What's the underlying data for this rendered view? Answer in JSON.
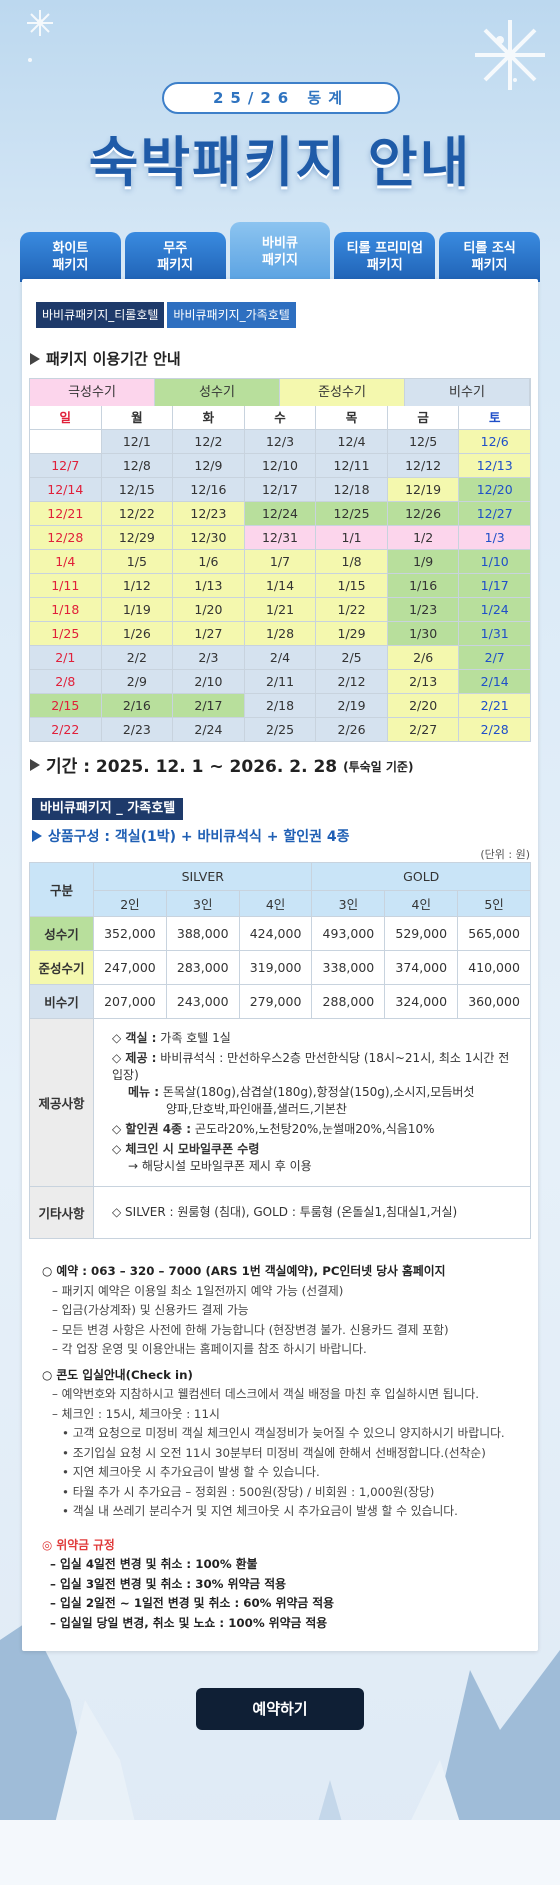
{
  "header": {
    "season": "25/26 동계",
    "title": "숙박패키지 안내"
  },
  "tabs": [
    {
      "lines": [
        "화이트",
        "패키지"
      ],
      "active": false
    },
    {
      "lines": [
        "무주",
        "패키지"
      ],
      "active": false
    },
    {
      "lines": [
        "바비큐",
        "패키지"
      ],
      "active": true
    },
    {
      "lines": [
        "티롤 프리미엄",
        "패키지"
      ],
      "active": false
    },
    {
      "lines": [
        "티롤 조식",
        "패키지"
      ],
      "active": false
    }
  ],
  "sub_tabs": [
    {
      "label": "바비큐패키지_티롤호텔",
      "active": false
    },
    {
      "label": "바비큐패키지_가족호텔",
      "active": true
    }
  ],
  "calendar": {
    "heading": "패키지 이용기간 안내",
    "seasons": [
      {
        "name": "극성수기",
        "color": "#fcd5ec"
      },
      {
        "name": "성수기",
        "color": "#b8df9c"
      },
      {
        "name": "준성수기",
        "color": "#f4f8ae"
      },
      {
        "name": "비수기",
        "color": "#d5e2ef"
      }
    ],
    "weekdays": [
      "일",
      "월",
      "화",
      "수",
      "목",
      "금",
      "토"
    ],
    "dates": [
      [
        null,
        "12/1",
        "12/2",
        "12/3",
        "12/4",
        "12/5",
        "12/6"
      ],
      [
        "12/7",
        "12/8",
        "12/9",
        "12/10",
        "12/11",
        "12/12",
        "12/13"
      ],
      [
        "12/14",
        "12/15",
        "12/16",
        "12/17",
        "12/18",
        "12/19",
        "12/20"
      ],
      [
        "12/21",
        "12/22",
        "12/23",
        "12/24",
        "12/25",
        "12/26",
        "12/27"
      ],
      [
        "12/28",
        "12/29",
        "12/30",
        "12/31",
        "1/1",
        "1/2",
        "1/3"
      ],
      [
        "1/4",
        "1/5",
        "1/6",
        "1/7",
        "1/8",
        "1/9",
        "1/10"
      ],
      [
        "1/11",
        "1/12",
        "1/13",
        "1/14",
        "1/15",
        "1/16",
        "1/17"
      ],
      [
        "1/18",
        "1/19",
        "1/20",
        "1/21",
        "1/22",
        "1/23",
        "1/24"
      ],
      [
        "1/25",
        "1/26",
        "1/27",
        "1/28",
        "1/29",
        "1/30",
        "1/31"
      ],
      [
        "2/1",
        "2/2",
        "2/3",
        "2/4",
        "2/5",
        "2/6",
        "2/7"
      ],
      [
        "2/8",
        "2/9",
        "2/10",
        "2/11",
        "2/12",
        "2/13",
        "2/14"
      ],
      [
        "2/15",
        "2/16",
        "2/17",
        "2/18",
        "2/19",
        "2/20",
        "2/21"
      ],
      [
        "2/22",
        "2/23",
        "2/24",
        "2/25",
        "2/26",
        "2/27",
        "2/28"
      ]
    ],
    "season_of": [
      [
        null,
        "비수기",
        "비수기",
        "비수기",
        "비수기",
        "비수기",
        "준성수기"
      ],
      [
        "비수기",
        "비수기",
        "비수기",
        "비수기",
        "비수기",
        "비수기",
        "준성수기"
      ],
      [
        "비수기",
        "비수기",
        "비수기",
        "비수기",
        "비수기",
        "준성수기",
        "성수기"
      ],
      [
        "준성수기",
        "준성수기",
        "준성수기",
        "성수기",
        "성수기",
        "성수기",
        "성수기"
      ],
      [
        "준성수기",
        "준성수기",
        "준성수기",
        "극성수기",
        "극성수기",
        "극성수기",
        "극성수기"
      ],
      [
        "준성수기",
        "준성수기",
        "준성수기",
        "준성수기",
        "준성수기",
        "성수기",
        "성수기"
      ],
      [
        "준성수기",
        "준성수기",
        "준성수기",
        "준성수기",
        "준성수기",
        "성수기",
        "성수기"
      ],
      [
        "준성수기",
        "준성수기",
        "준성수기",
        "준성수기",
        "준성수기",
        "성수기",
        "성수기"
      ],
      [
        "준성수기",
        "준성수기",
        "준성수기",
        "준성수기",
        "준성수기",
        "성수기",
        "성수기"
      ],
      [
        "비수기",
        "비수기",
        "비수기",
        "비수기",
        "비수기",
        "준성수기",
        "성수기"
      ],
      [
        "비수기",
        "비수기",
        "비수기",
        "비수기",
        "비수기",
        "준성수기",
        "성수기"
      ],
      [
        "성수기",
        "성수기",
        "성수기",
        "비수기",
        "비수기",
        "준성수기",
        "준성수기"
      ],
      [
        "비수기",
        "비수기",
        "비수기",
        "비수기",
        "비수기",
        "준성수기",
        "준성수기"
      ]
    ]
  },
  "period": {
    "text": "기간 : 2025. 12. 1 ~ 2026. 2. 28",
    "note": "(투숙일 기준)"
  },
  "package": {
    "label": "바비큐패키지 _ 가족호텔",
    "composition": "상품구성 : 객실(1박) + 바비큐석식 + 할인권 4종",
    "unit": "(단위 : 원)"
  },
  "price_table": {
    "corner": "구분",
    "groups": [
      "SILVER",
      "GOLD"
    ],
    "sub_headers": [
      "2인",
      "3인",
      "4인",
      "3인",
      "4인",
      "5인"
    ],
    "rows": [
      {
        "label": "성수기",
        "values": [
          "352,000",
          "388,000",
          "424,000",
          "493,000",
          "529,000",
          "565,000"
        ]
      },
      {
        "label": "준성수기",
        "values": [
          "247,000",
          "283,000",
          "319,000",
          "338,000",
          "374,000",
          "410,000"
        ]
      },
      {
        "label": "비수기",
        "values": [
          "207,000",
          "243,000",
          "279,000",
          "288,000",
          "324,000",
          "360,000"
        ]
      }
    ]
  },
  "provisions": {
    "label": "제공사항",
    "items": [
      {
        "head": "◇ 객실 :",
        "text": "가족 호텔 1실"
      },
      {
        "head": "◇ 제공 :",
        "text": "바비큐석식 : 만선하우스2층 만선한식당 (18시~21시, 최소 1시간 전 입장)",
        "sub": [
          {
            "head": "메뉴 :",
            "text": "돈목살(180g),삼겹살(180g),항정살(150g),소시지,모듬버섯",
            "more": "양파,단호박,파인애플,샐러드,기본찬"
          }
        ]
      },
      {
        "head": "◇ 할인권 4종 :",
        "text": "곤도라20%,노천탕20%,눈썰매20%,식음10%"
      },
      {
        "head": "◇ 체크인 시 모바일쿠폰 수령",
        "sub": [
          {
            "text": "→ 해당시설 모바일쿠폰 제시 후 이용"
          }
        ]
      }
    ]
  },
  "other": {
    "label": "기타사항",
    "text": "◇ SILVER : 원룸형 (침대), GOLD : 투룸형 (온돌실1,침대실1,거실)"
  },
  "notes": [
    {
      "title": "○ 예약 : 063 – 320 – 7000 (ARS 1번 객실예약), PC인터넷 당사 홈페이지",
      "items": [
        "– 패키지 예약은 이용일 최소 1일전까지 예약 가능 (선결제)",
        "– 입금(가상계좌) 및 신용카드 결제 가능",
        "– 모든 변경 사항은 사전에 한해 가능합니다 (현장변경 불가. 신용카드 결제 포함)",
        "– 각 업장 운영 및 이용안내는 홈페이지를 참조 하시기 바랍니다."
      ]
    },
    {
      "title": "○ 콘도 입실안내(Check in)",
      "items": [
        "– 예약번호와 지참하시고 웰컴센터 데스크에서 객실 배정을 마친 후 입실하시면 됩니다.",
        "– 체크인 : 15시, 체크아웃 : 11시"
      ],
      "bullets": [
        "• 고객 요청으로 미정비 객실 체크인시 객실정비가 늦어질 수 있으니 양지하시기 바랍니다.",
        "• 조기입실 요청 시 오전 11시 30분부터 미정비 객실에 한해서 선배정합니다.(선착순)",
        "• 지연 체크아웃 시 추가요금이 발생 할 수  있습니다.",
        "• 타월 추가 시 추가요금  – 정회원 : 500원(장당) / 비회원 : 1,000원(장당)",
        "• 객실 내 쓰레기 분리수거 및 지연 체크아웃 시 추가요금이 발생 할 수 있습니다."
      ]
    }
  ],
  "penalty": {
    "title": "◎ 위약금 규정",
    "items": [
      "– 입실 4일전 변경 및 취소 : 100% 환불",
      "– 입실 3일전 변경 및 취소 : 30% 위약금 적용",
      "– 입실 2일전 ~ 1일전 변경 및 취소 : 60% 위약금 적용",
      "– 입실일 당일 변경, 취소 및 노쇼 : 100% 위약금 적용"
    ]
  },
  "button": "예약하기"
}
